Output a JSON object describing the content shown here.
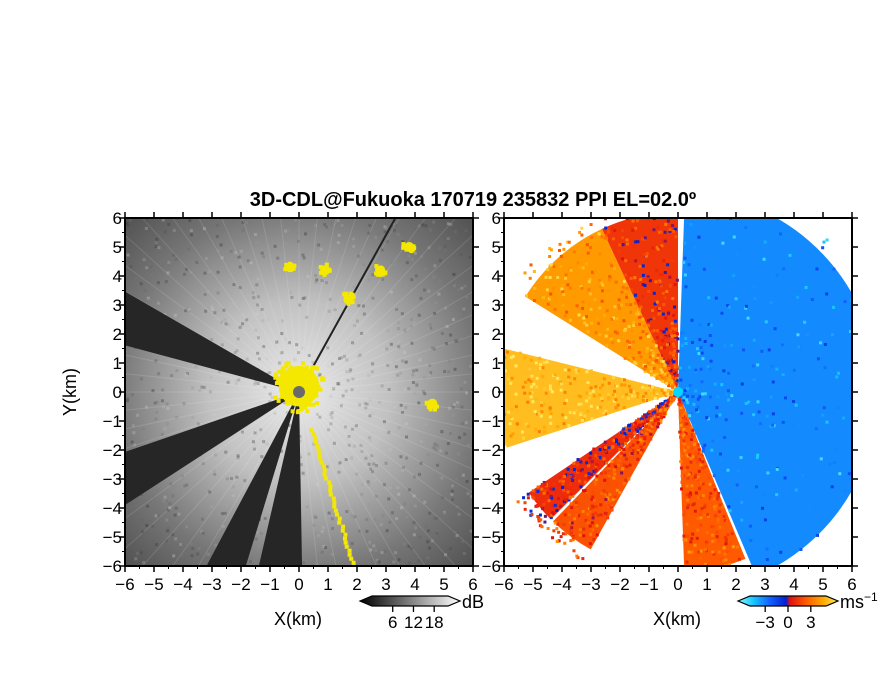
{
  "figure": {
    "title": "3D-CDL@Fukuoka 170719 235832 PPI EL=02.0º"
  },
  "colors": {
    "background": "#ffffff",
    "echo_overlay_yellow": "#f4e800",
    "radar_marker_left": "#6a6a6a",
    "radar_marker_right": "#00d8ff"
  },
  "chart_data": [
    {
      "type": "heatmap",
      "name": "reflectivity",
      "xlabel": "X(km)",
      "ylabel": "Y(km)",
      "xlim": [
        -6,
        6
      ],
      "ylim": [
        -6,
        6
      ],
      "xticks": [
        "−6",
        "−5",
        "−4",
        "−3",
        "−2",
        "−1",
        "0",
        "1",
        "2",
        "3",
        "4",
        "5",
        "6"
      ],
      "yticks": [
        "−6",
        "−5",
        "−4",
        "−3",
        "−2",
        "−1",
        "0",
        "1",
        "2",
        "3",
        "4",
        "5",
        "6"
      ],
      "colorbar": {
        "unit": "dB",
        "ticks": [
          "6",
          "12",
          "18"
        ],
        "values": [
          6,
          12,
          18
        ],
        "range": [
          0,
          22
        ],
        "colormap": "black-to-white"
      },
      "blocked_sectors_deg": [
        [
          150,
          165
        ],
        [
          199,
          213
        ],
        [
          242,
          253
        ],
        [
          257,
          271
        ]
      ],
      "yellow_regions": [
        {
          "x": 0.0,
          "y": 0.2,
          "radius_km": 0.7
        },
        {
          "x": 0.9,
          "y": 4.2
        },
        {
          "x": -0.3,
          "y": 4.3
        },
        {
          "x": 2.8,
          "y": 4.2
        },
        {
          "x": 3.8,
          "y": 5.0
        },
        {
          "x": 1.7,
          "y": 3.2
        },
        {
          "x": 4.6,
          "y": -0.4
        }
      ],
      "radar_site": {
        "x": 0,
        "y": 0
      }
    },
    {
      "type": "heatmap",
      "name": "doppler_velocity",
      "xlabel": "X(km)",
      "ylabel": "",
      "xlim": [
        -6,
        6
      ],
      "ylim": [
        -6,
        6
      ],
      "xticks": [
        "−6",
        "−5",
        "−4",
        "−3",
        "−2",
        "−1",
        "0",
        "1",
        "2",
        "3",
        "4",
        "5",
        "6"
      ],
      "yticks": [
        "−6",
        "−5",
        "−4",
        "−3",
        "−2",
        "−1",
        "0",
        "1",
        "2",
        "3",
        "4",
        "5",
        "6"
      ],
      "colorbar": {
        "unit": "ms",
        "unit_sup": "−1",
        "ticks": [
          "−3",
          "0",
          "3"
        ],
        "values": [
          -3,
          0,
          3
        ],
        "range": [
          -5,
          5
        ],
        "colormap": "cyan-blue-red-orange-yellow"
      },
      "sectors": [
        {
          "from_deg": 90,
          "to_deg": 115,
          "velocity": 1
        },
        {
          "from_deg": 115,
          "to_deg": 148,
          "velocity": 3.2
        },
        {
          "from_deg": 166,
          "to_deg": 198,
          "velocity": 4
        },
        {
          "from_deg": 214,
          "to_deg": 225,
          "velocity": 0.8
        },
        {
          "from_deg": 226,
          "to_deg": 241,
          "velocity": 1.6
        },
        {
          "from_deg": 272,
          "to_deg": 292,
          "velocity": 1.8
        },
        {
          "from_deg": -67,
          "to_deg": 88,
          "velocity": -2.5
        }
      ],
      "radar_site": {
        "x": 0,
        "y": 0
      }
    }
  ]
}
